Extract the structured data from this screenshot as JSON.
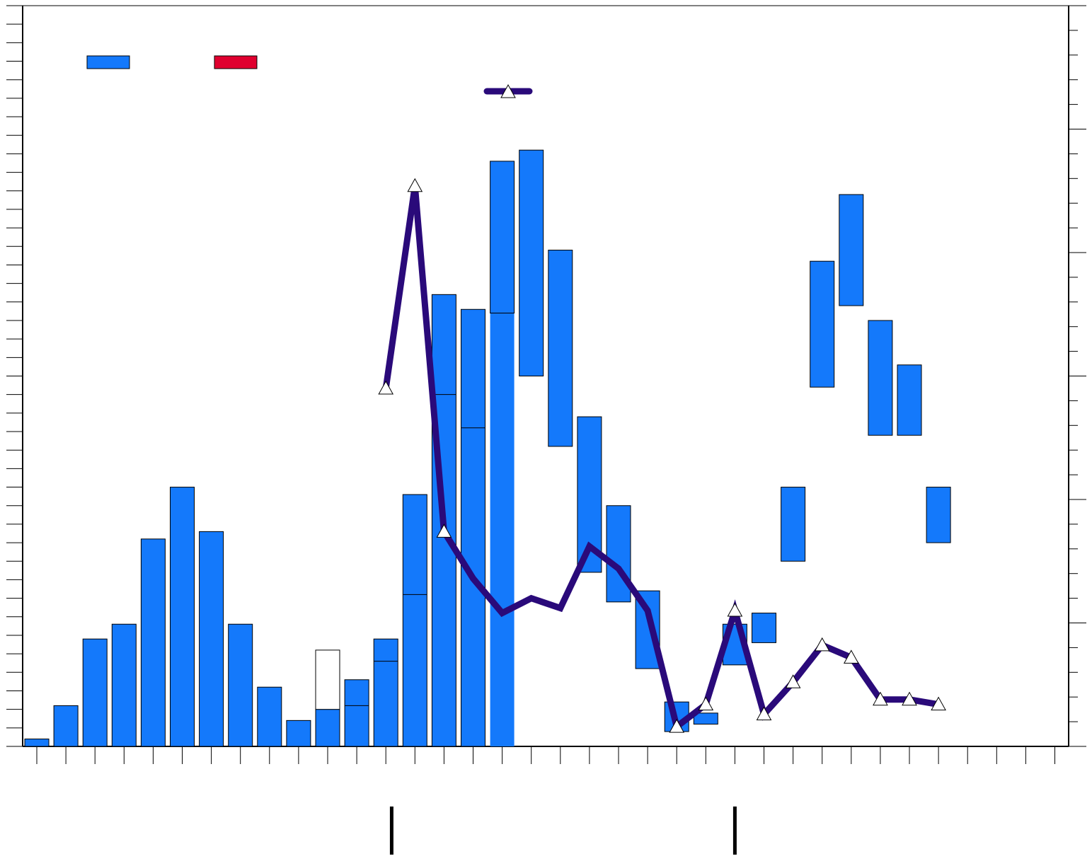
{
  "chart_data": {
    "type": "bar",
    "title": "",
    "xlabel": "",
    "ylabel": "",
    "y2label": "",
    "ylim": [
      0,
      200
    ],
    "y2lim": [
      0,
      30
    ],
    "x_slots": 36,
    "grid": false,
    "legend_placement": "top-left",
    "legend": [
      {
        "type": "swatch",
        "label": "",
        "color": "#1479FB"
      },
      {
        "type": "swatch",
        "label": "",
        "color": "#E0002F"
      },
      {
        "type": "line-marker",
        "label": "",
        "color": "#2A0A7A"
      }
    ],
    "series": [
      {
        "name": "",
        "type": "bar",
        "color": "#1479FB",
        "bars": [
          {
            "i": 0,
            "lo": 0,
            "hi": 2
          },
          {
            "i": 1,
            "lo": 0,
            "hi": 11
          },
          {
            "i": 2,
            "lo": 0,
            "hi": 29
          },
          {
            "i": 3,
            "lo": 0,
            "hi": 33
          },
          {
            "i": 4,
            "lo": 0,
            "hi": 56
          },
          {
            "i": 5,
            "lo": 0,
            "hi": 70
          },
          {
            "i": 6,
            "lo": 0,
            "hi": 58
          },
          {
            "i": 7,
            "lo": 0,
            "hi": 33
          },
          {
            "i": 8,
            "lo": 0,
            "hi": 16
          },
          {
            "i": 9,
            "lo": 0,
            "hi": 7
          },
          {
            "i": 10,
            "lo": 0,
            "hi": 10
          },
          {
            "i": 10,
            "lo": 10,
            "hi": 26,
            "fill": "#ffffff"
          },
          {
            "i": 11,
            "lo": 0,
            "hi": 18,
            "dividers": [
              11
            ]
          },
          {
            "i": 12,
            "lo": 0,
            "hi": 29,
            "dividers": [
              23
            ]
          },
          {
            "i": 13,
            "lo": 0,
            "hi": 68,
            "dividers": [
              41
            ]
          },
          {
            "i": 14,
            "lo": 0,
            "hi": 122,
            "dividers": [
              95
            ]
          },
          {
            "i": 15,
            "lo": 0,
            "hi": 118,
            "dividers": [
              86
            ]
          },
          {
            "i": 16,
            "lo": 0,
            "hi": 158,
            "dividers": [
              117
            ],
            "no_outline_below": 117
          },
          {
            "i": 17,
            "lo": 100,
            "hi": 161
          },
          {
            "i": 18,
            "lo": 81,
            "hi": 134
          },
          {
            "i": 19,
            "lo": 47,
            "hi": 89
          },
          {
            "i": 20,
            "lo": 39,
            "hi": 65
          },
          {
            "i": 21,
            "lo": 21,
            "hi": 42
          },
          {
            "i": 22,
            "lo": 4,
            "hi": 12
          },
          {
            "i": 23,
            "lo": 6,
            "hi": 9
          },
          {
            "i": 24,
            "lo": 22,
            "hi": 33
          },
          {
            "i": 25,
            "lo": 28,
            "hi": 36
          },
          {
            "i": 26,
            "lo": 50,
            "hi": 70
          },
          {
            "i": 27,
            "lo": 97,
            "hi": 131
          },
          {
            "i": 28,
            "lo": 119,
            "hi": 149
          },
          {
            "i": 29,
            "lo": 84,
            "hi": 115
          },
          {
            "i": 30,
            "lo": 84,
            "hi": 103
          },
          {
            "i": 31,
            "lo": 55,
            "hi": 70
          }
        ]
      },
      {
        "name": "",
        "type": "line",
        "axis": "right",
        "color": "#2A0A7A",
        "points": [
          {
            "i": 12,
            "y": 14.5
          },
          {
            "i": 13,
            "y": 22.7
          },
          {
            "i": 14,
            "y": 8.7
          },
          {
            "i": 15,
            "y": 6.8,
            "marker": false
          },
          {
            "i": 16,
            "y": 5.4,
            "marker": false
          },
          {
            "i": 17,
            "y": 6.0,
            "marker": false
          },
          {
            "i": 18,
            "y": 5.6,
            "marker": false
          },
          {
            "i": 19,
            "y": 8.1,
            "marker": false
          },
          {
            "i": 20,
            "y": 7.2,
            "marker": false
          },
          {
            "i": 21,
            "y": 5.5,
            "marker": false
          },
          {
            "i": 22,
            "y": 0.8
          },
          {
            "i": 23,
            "y": 1.7
          },
          {
            "i": 24,
            "y": 5.5
          },
          {
            "i": 25,
            "y": 1.3
          },
          {
            "i": 26,
            "y": 2.6
          },
          {
            "i": 27,
            "y": 4.1
          },
          {
            "i": 28,
            "y": 3.6
          },
          {
            "i": 29,
            "y": 1.9
          },
          {
            "i": 30,
            "y": 1.9
          },
          {
            "i": 31,
            "y": 1.7
          }
        ]
      }
    ],
    "x_markers": [
      12.2,
      24
    ]
  }
}
